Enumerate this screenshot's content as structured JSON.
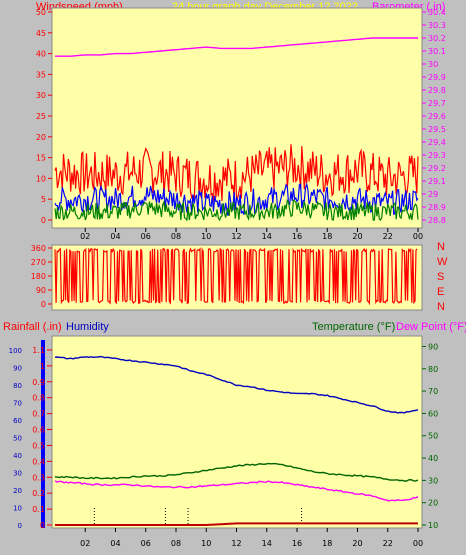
{
  "header": {
    "left_label": "Windspeed (mph)",
    "center_label": "24 hour graph day  December 12 2022",
    "right_label": "Barometer (.in)"
  },
  "direction_labels": [
    "N",
    "W",
    "S",
    "E",
    "N"
  ],
  "bottom_header": {
    "rainfall_label": "Rainfall (.in)",
    "humidity_label": "Humidity",
    "temperature_label": "Temperature (°F)",
    "dewpoint_label": "Dew Point (°F)"
  },
  "colors": {
    "plot_bg": "#ffffa8",
    "wind_gust": "#ff0000",
    "wind_avg": "#0000ff",
    "wind_low": "#008000",
    "barometer": "#ff00ff",
    "humidity": "#0000c0",
    "temperature": "#006400",
    "dewpoint": "#ff00ff",
    "rain": "#c00000"
  },
  "chart_data": [
    {
      "type": "line",
      "title": "24 hour graph day  December 12 2022",
      "x_ticks": [
        "02",
        "04",
        "06",
        "08",
        "10",
        "12",
        "14",
        "16",
        "18",
        "20",
        "22",
        "00"
      ],
      "y_left_label": "Windspeed (mph)",
      "y_left_range": [
        0,
        50
      ],
      "y_left_ticks": [
        0,
        5,
        10,
        15,
        20,
        25,
        30,
        35,
        40,
        45,
        50
      ],
      "y_right_label": "Barometer (.in)",
      "y_right_range": [
        28.8,
        30.4
      ],
      "y_right_ticks": [
        "28.8",
        "28.9",
        "29",
        "29.1",
        "29.2",
        "29.3",
        "29.4",
        "29.5",
        "29.6",
        "29.7",
        "29.8",
        "29.9",
        "30",
        "30.1",
        "30.2",
        "30.3",
        "30.4"
      ],
      "series": [
        {
          "name": "Barometer",
          "axis": "right",
          "x": [
            0,
            1,
            2,
            3,
            4,
            5,
            6,
            7,
            8,
            9,
            10,
            11,
            12,
            13,
            14,
            15,
            16,
            17,
            18,
            19,
            20,
            21,
            22,
            23,
            24
          ],
          "values": [
            30.06,
            30.06,
            30.07,
            30.07,
            30.08,
            30.08,
            30.09,
            30.1,
            30.11,
            30.12,
            30.13,
            30.12,
            30.12,
            30.12,
            30.13,
            30.14,
            30.15,
            30.16,
            30.17,
            30.18,
            30.19,
            30.2,
            30.2,
            30.2,
            30.2
          ]
        },
        {
          "name": "Gust",
          "axis": "left",
          "x": [
            0,
            2,
            4,
            6,
            8,
            10,
            12,
            14,
            16,
            18,
            20,
            22,
            24
          ],
          "values": [
            12,
            11,
            11,
            12,
            11,
            10,
            10,
            12,
            13,
            11,
            12,
            10,
            11
          ]
        },
        {
          "name": "Average",
          "axis": "left",
          "x": [
            0,
            2,
            4,
            6,
            8,
            10,
            12,
            14,
            16,
            18,
            20,
            22,
            24
          ],
          "values": [
            5,
            5,
            5,
            6,
            5,
            4,
            4,
            5,
            6,
            5,
            5,
            4,
            5
          ]
        },
        {
          "name": "Low",
          "axis": "left",
          "x": [
            0,
            2,
            4,
            6,
            8,
            10,
            12,
            14,
            16,
            18,
            20,
            22,
            24
          ],
          "values": [
            2,
            2,
            2,
            3,
            2,
            2,
            2,
            2,
            3,
            2,
            2,
            2,
            2
          ]
        }
      ]
    },
    {
      "type": "line",
      "title": "Wind direction",
      "y_ticks": [
        0,
        90,
        180,
        270,
        360
      ],
      "y_range": [
        0,
        360
      ],
      "note_labels": [
        "N",
        "W",
        "S",
        "E",
        "N"
      ],
      "series": [
        {
          "name": "Direction",
          "x": [
            0,
            2,
            4,
            6,
            8,
            10,
            12,
            14,
            16,
            18,
            20,
            22,
            24
          ],
          "values": [
            350,
            10,
            355,
            20,
            340,
            15,
            350,
            5,
            345,
            30,
            355,
            10,
            350
          ]
        }
      ]
    },
    {
      "type": "line",
      "title": "",
      "x_ticks": [
        "02",
        "04",
        "06",
        "08",
        "10",
        "12",
        "14",
        "16",
        "18",
        "20",
        "22",
        "00"
      ],
      "y_left_label": "Rainfall (.in)",
      "y_left_range": [
        0,
        1.15
      ],
      "y_left_ticks": [
        "0",
        "0.1",
        "0.2",
        "0.3",
        "0.4",
        "0.5",
        "0.6",
        "0.7",
        "0.8",
        "0.9",
        "1",
        "1.1"
      ],
      "y_humidity_ticks": [
        0,
        10,
        20,
        30,
        40,
        50,
        60,
        70,
        80,
        90,
        100
      ],
      "y_right_label": "Temperature (°F)",
      "y_right_range": [
        10,
        92
      ],
      "y_right_ticks": [
        10,
        20,
        30,
        40,
        50,
        60,
        70,
        80,
        90
      ],
      "series": [
        {
          "name": "Humidity",
          "x": [
            0,
            1,
            2,
            3,
            4,
            5,
            6,
            7,
            8,
            9,
            10,
            11,
            12,
            13,
            14,
            15,
            16,
            17,
            18,
            19,
            20,
            21,
            22,
            23,
            24
          ],
          "values": [
            96,
            95,
            96,
            96,
            95,
            94,
            93,
            92,
            91,
            88,
            86,
            83,
            80,
            79,
            77,
            76,
            75,
            75,
            74,
            72,
            70,
            68,
            65,
            64,
            66
          ]
        },
        {
          "name": "Temperature",
          "x": [
            0,
            1,
            2,
            3,
            4,
            5,
            6,
            7,
            8,
            9,
            10,
            11,
            12,
            13,
            14,
            15,
            16,
            17,
            18,
            19,
            20,
            21,
            22,
            23,
            24
          ],
          "values": [
            31.5,
            31.5,
            31,
            31,
            31,
            31.5,
            32,
            32,
            32.5,
            33.5,
            34.5,
            35.5,
            36.5,
            37,
            37.5,
            37,
            35.5,
            34,
            33,
            32.5,
            32,
            31.5,
            30.5,
            30,
            30
          ]
        },
        {
          "name": "Dew Point",
          "x": [
            0,
            1,
            2,
            3,
            4,
            5,
            6,
            7,
            8,
            9,
            10,
            11,
            12,
            13,
            14,
            15,
            16,
            17,
            18,
            19,
            20,
            21,
            22,
            23,
            24
          ],
          "values": [
            29.5,
            29,
            28.5,
            28,
            28,
            28,
            27.5,
            27,
            27,
            27,
            27.5,
            28,
            28.5,
            29,
            29.5,
            29,
            28,
            27,
            26,
            25,
            24,
            23,
            21,
            21,
            22.5
          ]
        },
        {
          "name": "Rainfall",
          "x": [
            0,
            2,
            4,
            6,
            8,
            10,
            12,
            14,
            16,
            18,
            20,
            22,
            24
          ],
          "values": [
            0,
            0,
            0,
            0,
            0,
            0,
            0.01,
            0.01,
            0.01,
            0.01,
            0.01,
            0.01,
            0.01
          ]
        }
      ]
    }
  ]
}
